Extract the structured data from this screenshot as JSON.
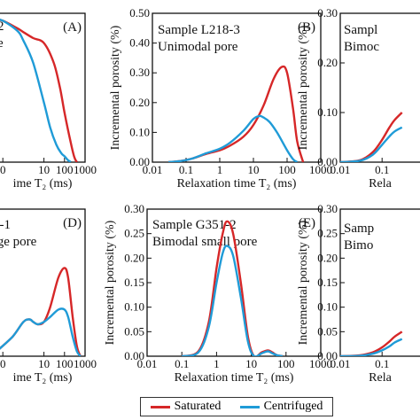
{
  "colors": {
    "saturated": "#d62728",
    "centrifuged": "#1f9bd7",
    "axis": "#111111"
  },
  "legend": {
    "saturated": "Saturated",
    "centrifuged": "Centrifuged"
  },
  "chart_data": [
    {
      "type": "line",
      "panel_letter": "(A)",
      "label_lines": [
        "-2",
        "re"
      ],
      "xscale": "log",
      "xlim": [
        0.01,
        1000
      ],
      "ylim": [
        0,
        0.3
      ],
      "xticks": [
        "0",
        "10",
        "100",
        "1000"
      ],
      "yticks": [],
      "xlabel": "ime T₂ (ms)",
      "ylabel": "",
      "series": [
        {
          "name": "Saturated",
          "color_key": "saturated",
          "x": [
            0.03,
            0.1,
            0.5,
            1,
            3,
            10,
            30,
            60,
            100,
            200,
            300,
            400
          ],
          "y": [
            0.29,
            0.285,
            0.27,
            0.262,
            0.25,
            0.24,
            0.2,
            0.15,
            0.1,
            0.04,
            0.01,
            0
          ]
        },
        {
          "name": "Centrifuged",
          "color_key": "centrifuged",
          "x": [
            0.03,
            0.1,
            0.5,
            1,
            3,
            10,
            20,
            40,
            70,
            100,
            140,
            200
          ],
          "y": [
            0.29,
            0.285,
            0.265,
            0.245,
            0.2,
            0.12,
            0.07,
            0.035,
            0.018,
            0.012,
            0.005,
            0
          ]
        }
      ]
    },
    {
      "type": "line",
      "panel_letter": "(B)",
      "label_lines": [
        "Sample L218-3",
        "Unimodal pore"
      ],
      "xscale": "log",
      "xlim": [
        0.01,
        1000
      ],
      "ylim": [
        0,
        0.5
      ],
      "xticks": [
        "0.01",
        "0.1",
        "1",
        "10",
        "100",
        "1000"
      ],
      "yticks": [
        "0.00",
        "0.10",
        "0.20",
        "0.30",
        "0.40",
        "0.50"
      ],
      "xlabel": "Relaxation time T₂ (ms)",
      "ylabel": "Incremental porosity (%)",
      "series": [
        {
          "name": "Saturated",
          "color_key": "saturated",
          "x": [
            0.03,
            0.07,
            0.15,
            0.4,
            1,
            2,
            5,
            10,
            20,
            40,
            70,
            100,
            150,
            200,
            300
          ],
          "y": [
            0,
            0.004,
            0.012,
            0.028,
            0.04,
            0.055,
            0.085,
            0.125,
            0.19,
            0.28,
            0.32,
            0.3,
            0.18,
            0.07,
            0
          ]
        },
        {
          "name": "Centrifuged",
          "color_key": "centrifuged",
          "x": [
            0.03,
            0.07,
            0.15,
            0.4,
            1,
            2,
            5,
            10,
            15,
            20,
            30,
            50,
            100,
            150,
            200
          ],
          "y": [
            0,
            0.004,
            0.012,
            0.03,
            0.045,
            0.065,
            0.105,
            0.145,
            0.155,
            0.15,
            0.135,
            0.1,
            0.04,
            0.01,
            0
          ]
        }
      ]
    },
    {
      "type": "line",
      "panel_letter": "",
      "label_lines": [
        "Sampl",
        "Bimoc"
      ],
      "xscale": "log",
      "xlim": [
        0.01,
        1000
      ],
      "ylim": [
        0,
        0.3
      ],
      "xticks": [
        "0.01",
        "0.1"
      ],
      "yticks": [
        "0.00",
        "0.10",
        "0.20",
        "0.30"
      ],
      "xlabel": "Rela",
      "ylabel": "Incremental porosity (%)",
      "series": [
        {
          "name": "Saturated",
          "color_key": "saturated",
          "x": [
            0.01,
            0.03,
            0.06,
            0.1,
            0.15,
            0.2,
            0.3
          ],
          "y": [
            0,
            0.004,
            0.02,
            0.045,
            0.07,
            0.085,
            0.1
          ]
        },
        {
          "name": "Centrifuged",
          "color_key": "centrifuged",
          "x": [
            0.01,
            0.03,
            0.06,
            0.1,
            0.15,
            0.2,
            0.3
          ],
          "y": [
            0,
            0.003,
            0.015,
            0.035,
            0.052,
            0.062,
            0.07
          ]
        }
      ]
    },
    {
      "type": "line",
      "panel_letter": "(D)",
      "label_lines": [
        "9-1",
        "rge pore"
      ],
      "xscale": "log",
      "xlim": [
        0.01,
        1000
      ],
      "ylim": [
        0,
        0.3
      ],
      "xticks": [
        "0",
        "10",
        "100",
        "1000"
      ],
      "yticks": [],
      "xlabel": "ime T₂ (ms)",
      "ylabel": "",
      "series": [
        {
          "name": "Saturated",
          "color_key": "saturated",
          "x": [
            0.05,
            0.3,
            1,
            2,
            3,
            5,
            10,
            20,
            50,
            100,
            150,
            250,
            400,
            600
          ],
          "y": [
            0.01,
            0.04,
            0.07,
            0.075,
            0.07,
            0.065,
            0.07,
            0.1,
            0.16,
            0.18,
            0.16,
            0.08,
            0.02,
            0
          ]
        },
        {
          "name": "Centrifuged",
          "color_key": "centrifuged",
          "x": [
            0.05,
            0.3,
            1,
            2,
            3,
            5,
            10,
            20,
            50,
            100,
            150,
            250,
            400,
            600
          ],
          "y": [
            0.01,
            0.04,
            0.07,
            0.075,
            0.07,
            0.065,
            0.07,
            0.08,
            0.095,
            0.095,
            0.08,
            0.04,
            0.01,
            0
          ]
        }
      ]
    },
    {
      "type": "line",
      "panel_letter": "(E)",
      "label_lines": [
        "Sample G351-2",
        "Bimodal small pore"
      ],
      "xscale": "log",
      "xlim": [
        0.01,
        1000
      ],
      "ylim": [
        0,
        0.3
      ],
      "xticks": [
        "0.01",
        "0.1",
        "1",
        "10",
        "100",
        "1000"
      ],
      "yticks": [
        "0.00",
        "0.05",
        "0.10",
        "0.15",
        "0.20",
        "0.25",
        "0.30"
      ],
      "xlabel": "Relaxation time T₂ (ms)",
      "ylabel": "Incremental porosity (%)",
      "series": [
        {
          "name": "Saturated",
          "color_key": "saturated",
          "x": [
            0.1,
            0.3,
            0.6,
            1,
            1.5,
            2,
            3,
            5,
            8,
            12,
            20,
            30,
            40,
            55,
            80
          ],
          "y": [
            0,
            0.01,
            0.07,
            0.18,
            0.25,
            0.275,
            0.25,
            0.15,
            0.04,
            0,
            0.008,
            0.012,
            0.008,
            0.002,
            0
          ]
        },
        {
          "name": "Centrifuged",
          "color_key": "centrifuged",
          "x": [
            0.1,
            0.3,
            0.6,
            1,
            1.5,
            2,
            3,
            5,
            8,
            12,
            20,
            30,
            40,
            55,
            80
          ],
          "y": [
            0,
            0.008,
            0.06,
            0.15,
            0.21,
            0.225,
            0.205,
            0.12,
            0.03,
            0,
            0.006,
            0.01,
            0.006,
            0.002,
            0
          ]
        }
      ]
    },
    {
      "type": "line",
      "panel_letter": "",
      "label_lines": [
        "Samp",
        "Bimo"
      ],
      "xscale": "log",
      "xlim": [
        0.01,
        1000
      ],
      "ylim": [
        0,
        0.3
      ],
      "xticks": [
        "0.01",
        "0.1"
      ],
      "yticks": [
        "0.00",
        "0.05",
        "0.10",
        "0.15",
        "0.20",
        "0.25",
        "0.30"
      ],
      "xlabel": "Rela",
      "ylabel": "Incremental porosity (%)",
      "series": [
        {
          "name": "Saturated",
          "color_key": "saturated",
          "x": [
            0.01,
            0.03,
            0.06,
            0.1,
            0.15,
            0.2,
            0.3
          ],
          "y": [
            0,
            0.002,
            0.008,
            0.018,
            0.03,
            0.04,
            0.05
          ]
        },
        {
          "name": "Centrifuged",
          "color_key": "centrifuged",
          "x": [
            0.01,
            0.03,
            0.06,
            0.1,
            0.15,
            0.2,
            0.3
          ],
          "y": [
            0,
            0.001,
            0.005,
            0.012,
            0.02,
            0.028,
            0.035
          ]
        }
      ]
    }
  ]
}
